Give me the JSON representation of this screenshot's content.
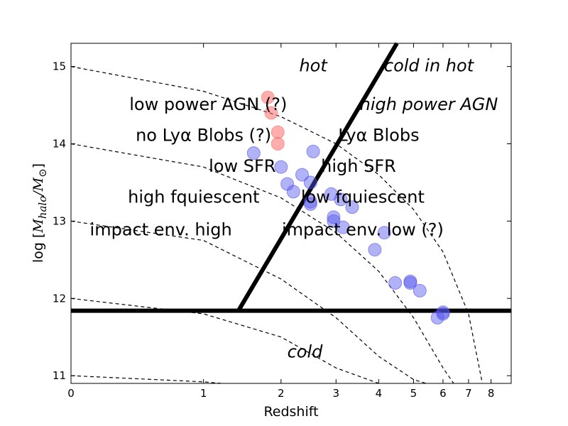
{
  "chart_data": {
    "type": "scatter",
    "xlabel": "Redshift",
    "ylabel": {
      "prefix": "log [",
      "math": "M",
      "sub": "halo",
      "slash": "/",
      "math2": "M",
      "sub2": "⊙",
      "suffix": "]"
    },
    "x_scale": "log(1+z)",
    "xlim": [
      0,
      9
    ],
    "ylim": [
      10.9,
      15.3
    ],
    "x_ticks": [
      0,
      1,
      2,
      3,
      4,
      5,
      6,
      7,
      8
    ],
    "x_tick_labels": [
      "0",
      "1",
      "2",
      "3",
      "4",
      "5",
      "6",
      "7",
      "8"
    ],
    "y_ticks": [
      11,
      12,
      13,
      14,
      15
    ],
    "y_tick_labels": [
      "11",
      "12",
      "13",
      "14",
      "15"
    ],
    "threshold_line": {
      "y": 11.84
    },
    "diagonal_line": {
      "from": {
        "z": 1.4,
        "y": 11.84
      },
      "to": {
        "z": 4.5,
        "y": 15.3
      }
    },
    "growth_tracks": [
      {
        "name": "track-15",
        "z": [
          0,
          1,
          2,
          3,
          4,
          5,
          6,
          7,
          7.6
        ],
        "y": [
          15.0,
          14.68,
          14.35,
          14.0,
          13.6,
          13.15,
          12.6,
          11.8,
          10.9
        ]
      },
      {
        "name": "track-14",
        "z": [
          0,
          1,
          2,
          3,
          4,
          5,
          6,
          6.4
        ],
        "y": [
          14.0,
          13.7,
          13.3,
          12.85,
          12.35,
          11.75,
          11.1,
          10.9
        ]
      },
      {
        "name": "track-13",
        "z": [
          0,
          1,
          2,
          3,
          4,
          5,
          5.4
        ],
        "y": [
          13.0,
          12.75,
          12.25,
          11.75,
          11.25,
          10.95,
          10.9
        ]
      },
      {
        "name": "track-12",
        "z": [
          0,
          1,
          2,
          3,
          4
        ],
        "y": [
          12.0,
          11.8,
          11.5,
          11.1,
          10.9
        ]
      },
      {
        "name": "track-11",
        "z": [
          0,
          1,
          1.2
        ],
        "y": [
          11.0,
          10.92,
          10.9
        ]
      }
    ],
    "series": [
      {
        "name": "Lyα Blobs (no)",
        "color": "#ff6b6b",
        "opacity": 0.55,
        "points": [
          [
            1.8,
            14.6
          ],
          [
            1.85,
            14.4
          ],
          [
            1.95,
            14.15
          ],
          [
            1.95,
            14.0
          ]
        ]
      },
      {
        "name": "blue sources",
        "color": "#5555ee",
        "opacity": 0.45,
        "points": [
          [
            1.6,
            13.88
          ],
          [
            2.0,
            13.7
          ],
          [
            2.1,
            13.48
          ],
          [
            2.2,
            13.38
          ],
          [
            2.35,
            13.6
          ],
          [
            2.5,
            13.5
          ],
          [
            2.55,
            13.9
          ],
          [
            2.5,
            13.22
          ],
          [
            2.5,
            13.25
          ],
          [
            2.9,
            13.35
          ],
          [
            2.95,
            13.05
          ],
          [
            2.95,
            13.0
          ],
          [
            3.15,
            12.92
          ],
          [
            3.1,
            13.28
          ],
          [
            3.35,
            13.18
          ],
          [
            4.15,
            12.85
          ],
          [
            3.9,
            12.63
          ],
          [
            4.45,
            12.2
          ],
          [
            4.9,
            12.2
          ],
          [
            4.9,
            12.22
          ],
          [
            5.2,
            12.1
          ],
          [
            5.8,
            11.75
          ],
          [
            6.0,
            11.82
          ],
          [
            6.0,
            11.8
          ]
        ]
      }
    ],
    "annotations": [
      {
        "text": "hot",
        "z": 2.55,
        "y": 15.0,
        "color": "#ff0000",
        "style": "italic",
        "size": 26
      },
      {
        "text": "cold in hot",
        "z": 5.5,
        "y": 15.0,
        "color": "#ff0000",
        "style": "italic",
        "size": 26
      },
      {
        "text": "low power AGN (?)",
        "z": 1.05,
        "y": 14.5,
        "color": "#000000",
        "style": "normal",
        "size": 24
      },
      {
        "text": "high power AGN",
        "z": 5.5,
        "y": 14.5,
        "color": "#000000",
        "style": "italic",
        "size": 24
      },
      {
        "text": "no  Lyα Blobs (?)",
        "z": 1.0,
        "y": 14.1,
        "color": "#000000",
        "style": "normal",
        "size": 24
      },
      {
        "text": "Lyα Blobs",
        "z": 4.0,
        "y": 14.1,
        "color": "#000000",
        "style": "normal",
        "size": 24
      },
      {
        "text": "low SFR",
        "z": 1.45,
        "y": 13.7,
        "color": "#000000",
        "style": "normal",
        "size": 24
      },
      {
        "text": "high SFR",
        "z": 3.5,
        "y": 13.7,
        "color": "#000000",
        "style": "normal",
        "size": 24
      },
      {
        "text": "high fquiescent",
        "z": 0.9,
        "y": 13.3,
        "color": "#000000",
        "style": "normal",
        "size": 24
      },
      {
        "text": "low fquiescent",
        "z": 3.6,
        "y": 13.3,
        "color": "#000000",
        "style": "normal",
        "size": 24
      },
      {
        "text": "impact env. high",
        "z": 0.6,
        "y": 12.88,
        "color": "#000000",
        "style": "normal",
        "size": 24
      },
      {
        "text": "impact env. low (?)",
        "z": 3.6,
        "y": 12.88,
        "color": "#000000",
        "style": "normal",
        "size": 24
      },
      {
        "text": "cold",
        "z": 2.4,
        "y": 11.3,
        "color": "#0000ff",
        "style": "italic",
        "size": 26
      }
    ]
  }
}
